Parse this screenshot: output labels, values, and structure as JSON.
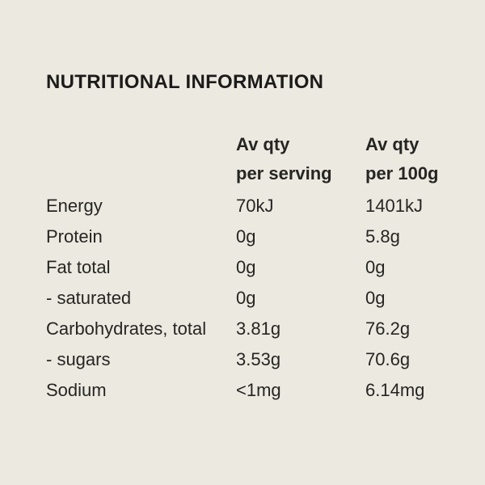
{
  "colors": {
    "background": "#ECE9E1",
    "title_text": "#1C1B19",
    "body_text": "#262522"
  },
  "title": "NUTRITIONAL INFORMATION",
  "table": {
    "header": {
      "serving_line1": "Av qty",
      "serving_line2": "per serving",
      "per100g_line1": "Av qty",
      "per100g_line2": "per 100g"
    },
    "rows": [
      {
        "label": "Energy",
        "per_serving": "70kJ",
        "per_100g": "1401kJ"
      },
      {
        "label": "Protein",
        "per_serving": "0g",
        "per_100g": "5.8g"
      },
      {
        "label": "Fat total",
        "per_serving": "0g",
        "per_100g": "0g"
      },
      {
        "label": "- saturated",
        "per_serving": "0g",
        "per_100g": "0g"
      },
      {
        "label": "Carbohydrates, total",
        "per_serving": "3.81g",
        "per_100g": "76.2g"
      },
      {
        "label": "- sugars",
        "per_serving": "3.53g",
        "per_100g": "70.6g"
      },
      {
        "label": "Sodium",
        "per_serving": "<1mg",
        "per_100g": "6.14mg"
      }
    ]
  }
}
